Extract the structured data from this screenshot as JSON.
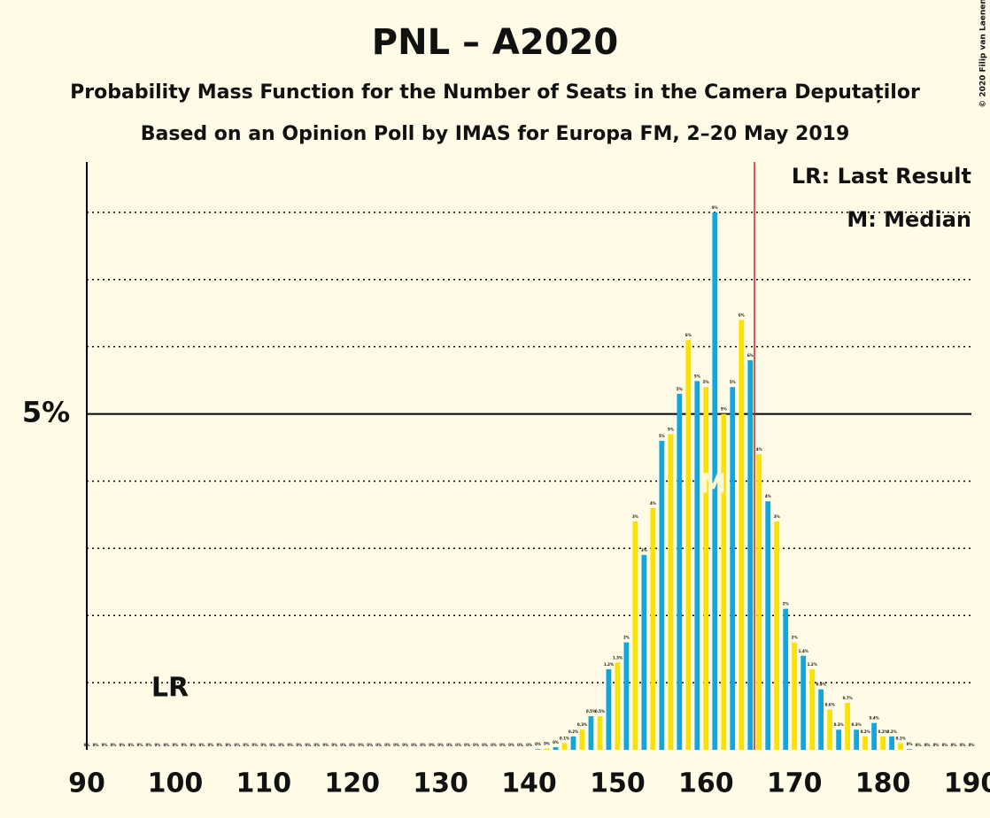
{
  "chart_data": {
    "type": "bar",
    "title": "PNL – A2020",
    "subtitle": "Probability Mass Function for the Number of Seats in the Camera Deputaților",
    "subtitle2": "Based on an Opinion Poll by IMAS for Europa FM, 2–20 May 2019",
    "copyright": "© 2020 Filip van Laenen",
    "legend_lines": [
      "LR: Last Result",
      "M: Median"
    ],
    "annotations": {
      "last_result": "LR",
      "median": "M"
    },
    "colors": [
      "#ffe100",
      "#12a6e0"
    ],
    "x": [
      90,
      91,
      92,
      93,
      94,
      95,
      96,
      97,
      98,
      99,
      100,
      101,
      102,
      103,
      104,
      105,
      106,
      107,
      108,
      109,
      110,
      111,
      112,
      113,
      114,
      115,
      116,
      117,
      118,
      119,
      120,
      121,
      122,
      123,
      124,
      125,
      126,
      127,
      128,
      129,
      130,
      131,
      132,
      133,
      134,
      135,
      136,
      137,
      138,
      139,
      140,
      141,
      142,
      143,
      144,
      145,
      146,
      147,
      148,
      149,
      150,
      151,
      152,
      153,
      154,
      155,
      156,
      157,
      158,
      159,
      160,
      161,
      162,
      163,
      164,
      165,
      166,
      167,
      168,
      169,
      170,
      171,
      172,
      173,
      174,
      175,
      176,
      177,
      178,
      179,
      180,
      181,
      182,
      183,
      184,
      185,
      186,
      187,
      188,
      189,
      190
    ],
    "values": [
      0,
      0,
      0,
      0,
      0,
      0,
      0,
      0,
      0,
      0,
      0,
      0,
      0,
      0,
      0,
      0,
      0,
      0,
      0,
      0,
      0,
      0,
      0,
      0,
      0,
      0,
      0,
      0,
      0,
      0,
      0,
      0,
      0,
      0,
      0,
      0,
      0,
      0,
      0,
      0,
      0,
      0,
      0,
      0,
      0,
      0,
      0,
      0,
      0,
      0,
      0,
      0.01,
      0.02,
      0.04,
      0.1,
      0.2,
      0.3,
      0.5,
      0.5,
      1.2,
      1.3,
      1.6,
      3.4,
      2.9,
      3.6,
      4.6,
      4.7,
      5.3,
      6.1,
      5.49,
      5.4,
      8.0,
      5.0,
      5.4,
      6.4,
      5.8,
      4.4,
      3.7,
      3.4,
      2.1,
      1.6,
      1.4,
      1.2,
      0.9,
      0.6,
      0.3,
      0.7,
      0.3,
      0.2,
      0.4,
      0.2,
      0.2,
      0.1,
      0.01,
      0,
      0,
      0,
      0,
      0,
      0,
      0
    ],
    "value_labels": [
      "0%",
      "0%",
      "0%",
      "0%",
      "0%",
      "0%",
      "0%",
      "0%",
      "0%",
      "0%",
      "0%",
      "0%",
      "0%",
      "0%",
      "0%",
      "0%",
      "0%",
      "0%",
      "0%",
      "0%",
      "0%",
      "0%",
      "0%",
      "0%",
      "0%",
      "0%",
      "0%",
      "0%",
      "0%",
      "0%",
      "0%",
      "0%",
      "0%",
      "0%",
      "0%",
      "0%",
      "0%",
      "0%",
      "0%",
      "0%",
      "0%",
      "0%",
      "0%",
      "0%",
      "0%",
      "0%",
      "0%",
      "0%",
      "0%",
      "0%",
      "0%",
      "0%",
      "0%",
      "0%",
      "0.1%",
      "0.2%",
      "0.3%",
      "0.5%",
      "0.5%",
      "1.2%",
      "1.3%",
      "2%",
      "3%",
      "3%",
      "4%",
      "5%",
      "5%",
      "5%",
      "6%",
      "5%",
      "5%",
      "8%",
      "5%",
      "5%",
      "6%",
      "6%",
      "4%",
      "4%",
      "3%",
      "2%",
      "2%",
      "1.4%",
      "1.2%",
      "0.9%",
      "0.6%",
      "0.3%",
      "0.7%",
      "0.3%",
      "0.2%",
      "0.4%",
      "0.2%",
      "0.2%",
      "0.1%",
      "0%",
      "0%",
      "0%",
      "0%",
      "0%",
      "0%",
      "0%",
      "0%"
    ],
    "xlim": [
      90,
      190
    ],
    "xticks": [
      90,
      100,
      110,
      120,
      130,
      140,
      150,
      160,
      170,
      180,
      190
    ],
    "ylim": [
      0,
      8.75
    ],
    "yticks": [
      {
        "value": 5,
        "label": "5%"
      }
    ],
    "grid_lines": [
      1,
      2,
      3,
      4,
      6,
      7,
      8
    ]
  }
}
